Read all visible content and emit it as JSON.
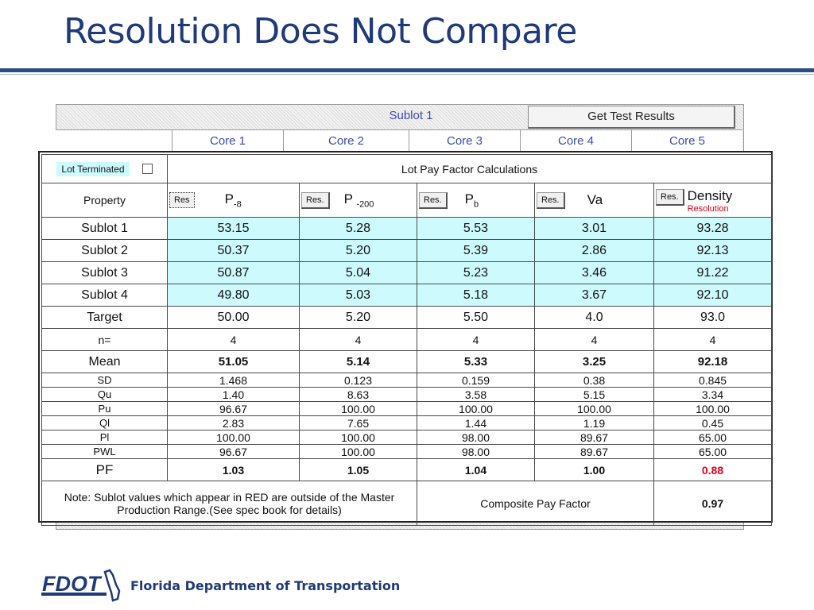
{
  "slide": {
    "title": "Resolution Does Not Compare",
    "footer_org": "Florida Department of Transportation",
    "logo_text": "FDOT"
  },
  "background_sheet": {
    "sublot_label": "Sublot 1",
    "get_results_button": "Get Test Results",
    "cores": [
      "Core 1",
      "Core 2",
      "Core 3",
      "Core 4",
      "Core 5"
    ]
  },
  "lpf": {
    "lot_terminated_label": "Lot Terminated",
    "lot_terminated_checked": false,
    "title": "Lot Pay Factor Calculations",
    "property_label": "Property",
    "columns": [
      {
        "res_label": "Res",
        "symbol": "P",
        "subscript": "-8"
      },
      {
        "res_label": "Res.",
        "symbol": "P",
        "subscript": "-200"
      },
      {
        "res_label": "Res.",
        "symbol": "P",
        "subscript": "b"
      },
      {
        "res_label": "Res.",
        "symbol": "Va",
        "subscript": ""
      },
      {
        "res_label": "Res.",
        "symbol": "Density",
        "subscript": "",
        "note": "Resolution"
      }
    ],
    "rows": [
      {
        "label": "Sublot 1",
        "values": [
          "53.15",
          "5.28",
          "5.53",
          "3.01",
          "93.28"
        ]
      },
      {
        "label": "Sublot 2",
        "values": [
          "50.37",
          "5.20",
          "5.39",
          "2.86",
          "92.13"
        ]
      },
      {
        "label": "Sublot 3",
        "values": [
          "50.87",
          "5.04",
          "5.23",
          "3.46",
          "91.22"
        ]
      },
      {
        "label": "Sublot 4",
        "values": [
          "49.80",
          "5.03",
          "5.18",
          "3.67",
          "92.10"
        ]
      },
      {
        "label": "Target",
        "values": [
          "50.00",
          "5.20",
          "5.50",
          "4.0",
          "93.0"
        ]
      },
      {
        "label": "n=",
        "values": [
          "4",
          "4",
          "4",
          "4",
          "4"
        ]
      },
      {
        "label": "Mean",
        "values": [
          "51.05",
          "5.14",
          "5.33",
          "3.25",
          "92.18"
        ]
      },
      {
        "label": "SD",
        "values": [
          "1.468",
          "0.123",
          "0.159",
          "0.38",
          "0.845"
        ]
      },
      {
        "label": "Qu",
        "values": [
          "1.40",
          "8.63",
          "3.58",
          "5.15",
          "3.34"
        ]
      },
      {
        "label": "Pu",
        "values": [
          "96.67",
          "100.00",
          "100.00",
          "100.00",
          "100.00"
        ]
      },
      {
        "label": "Ql",
        "values": [
          "2.83",
          "7.65",
          "1.44",
          "1.19",
          "0.45"
        ]
      },
      {
        "label": "Pl",
        "values": [
          "100.00",
          "100.00",
          "98.00",
          "89.67",
          "65.00"
        ]
      },
      {
        "label": "PWL",
        "values": [
          "96.67",
          "100.00",
          "98.00",
          "89.67",
          "65.00"
        ]
      },
      {
        "label": "PF",
        "values": [
          "1.03",
          "1.05",
          "1.04",
          "1.00",
          "0.88"
        ]
      }
    ],
    "note": "Note: Sublot values which appear in RED are outside of the Master Production Range.(See spec book for details)",
    "composite_label": "Composite Pay Factor",
    "composite_value": "0.97",
    "colors": {
      "highlight": "#cdfafd",
      "alert_red": "#e0001a",
      "title_blue": "#1f3a78"
    }
  }
}
